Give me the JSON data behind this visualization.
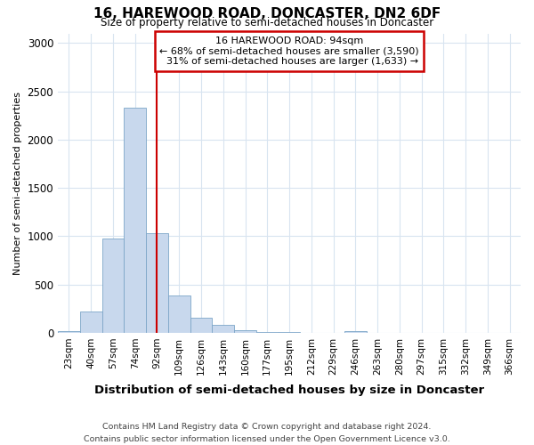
{
  "title1": "16, HAREWOOD ROAD, DONCASTER, DN2 6DF",
  "title2": "Size of property relative to semi-detached houses in Doncaster",
  "xlabel": "Distribution of semi-detached houses by size in Doncaster",
  "ylabel": "Number of semi-detached properties",
  "property_label": "16 HAREWOOD ROAD: 94sqm",
  "pct_smaller": 68,
  "pct_larger": 31,
  "n_smaller": 3590,
  "n_larger": 1633,
  "categories": [
    "23sqm",
    "40sqm",
    "57sqm",
    "74sqm",
    "92sqm",
    "109sqm",
    "126sqm",
    "143sqm",
    "160sqm",
    "177sqm",
    "195sqm",
    "212sqm",
    "229sqm",
    "246sqm",
    "263sqm",
    "280sqm",
    "297sqm",
    "315sqm",
    "332sqm",
    "349sqm",
    "366sqm"
  ],
  "values": [
    15,
    220,
    975,
    2330,
    1030,
    385,
    160,
    80,
    30,
    8,
    5,
    2,
    2,
    20,
    1,
    0,
    0,
    0,
    0,
    0,
    0
  ],
  "highlight_index": 4,
  "bar_color": "#c8d8ed",
  "bar_edge_color": "#7da6c8",
  "highlight_line_color": "#cc0000",
  "annotation_box_color": "#ffffff",
  "annotation_box_edge_color": "#cc0000",
  "grid_color": "#d8e4f0",
  "background_color": "#ffffff",
  "footer": "Contains HM Land Registry data © Crown copyright and database right 2024.\nContains public sector information licensed under the Open Government Licence v3.0.",
  "ylim": [
    0,
    3100
  ],
  "yticks": [
    0,
    500,
    1000,
    1500,
    2000,
    2500,
    3000
  ]
}
